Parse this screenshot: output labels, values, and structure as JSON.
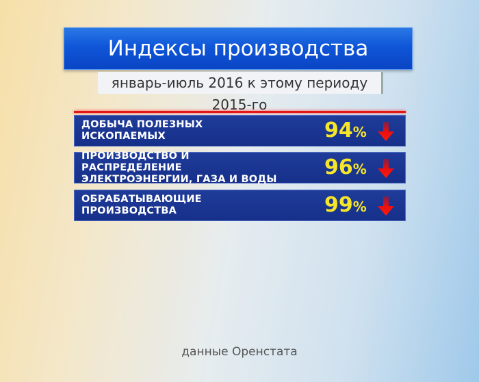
{
  "title": "Индексы производства",
  "subtitle": "январь-июль 2016 к этому периоду 2015-го",
  "source": "данные Оренстата",
  "colors": {
    "title_bar": "#0f56d8",
    "row_bg": "#1f3c9a",
    "value": "#f5e62a",
    "arrow": "#e81010"
  },
  "chart_data": {
    "type": "table",
    "title": "Индексы производства",
    "subtitle": "январь-июль 2016 к этому периоду 2015-го",
    "rows": [
      {
        "label": "ДОБЫЧА ПОЛЕЗНЫХ ИСКОПАЕМЫХ",
        "value": "94",
        "unit": "%",
        "trend": "down"
      },
      {
        "label": "ПРОИЗВОДСТВО И РАСПРЕДЕЛЕНИЕ ЭЛЕКТРОЭНЕРГИИ, ГАЗА И ВОДЫ",
        "value": "96",
        "unit": "%",
        "trend": "down"
      },
      {
        "label": "ОБРАБАТЫВАЮЩИЕ ПРОИЗВОДСТВА",
        "value": "99",
        "unit": "%",
        "trend": "down"
      }
    ]
  }
}
